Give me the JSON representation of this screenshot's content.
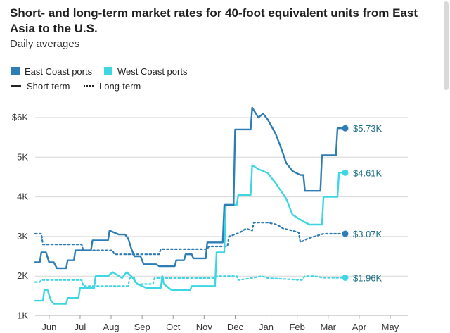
{
  "chart_data": {
    "type": "line",
    "title": "Short- and long-term market rates for 40-foot equivalent units from East Asia to the U.S.",
    "subtitle": "Daily averages",
    "legend": {
      "colors": [
        {
          "label": "East Coast ports",
          "color": "#2e7db5"
        },
        {
          "label": "West Coast ports",
          "color": "#3fd6e4"
        }
      ],
      "styles": [
        {
          "label": "Short-term",
          "style": "solid"
        },
        {
          "label": "Long-term",
          "style": "dotted"
        }
      ],
      "placement": "top-left"
    },
    "x_ticks": [
      "Jun",
      "Jul",
      "Aug",
      "Sep",
      "Oct",
      "Nov",
      "Dec",
      "Jan",
      "Feb",
      "Mar",
      "Apr",
      "May"
    ],
    "y_ticks": [
      "$6K",
      "5K",
      "4K",
      "3K",
      "2K",
      "1K"
    ],
    "y_tick_values": [
      6000,
      5000,
      4000,
      3000,
      2000,
      1000
    ],
    "ylim": [
      1000,
      6500
    ],
    "xlim": [
      0,
      12
    ],
    "grid": "horizontal",
    "series": [
      {
        "name": "East Coast ports",
        "style": "solid",
        "color": "#2e7db5",
        "end_label": "$5.73K",
        "points": [
          [
            0,
            2350
          ],
          [
            0.15,
            2350
          ],
          [
            0.2,
            2600
          ],
          [
            0.35,
            2600
          ],
          [
            0.45,
            2350
          ],
          [
            0.6,
            2350
          ],
          [
            0.7,
            2200
          ],
          [
            1.0,
            2200
          ],
          [
            1.05,
            2400
          ],
          [
            1.25,
            2400
          ],
          [
            1.3,
            2650
          ],
          [
            1.8,
            2650
          ],
          [
            1.85,
            2900
          ],
          [
            2.35,
            2900
          ],
          [
            2.4,
            3150
          ],
          [
            2.7,
            3050
          ],
          [
            2.9,
            3050
          ],
          [
            3.0,
            2950
          ],
          [
            3.1,
            2700
          ],
          [
            3.2,
            2500
          ],
          [
            3.4,
            2500
          ],
          [
            3.5,
            2300
          ],
          [
            3.9,
            2300
          ],
          [
            4.0,
            2250
          ],
          [
            4.5,
            2250
          ],
          [
            4.55,
            2400
          ],
          [
            4.8,
            2400
          ],
          [
            4.85,
            2550
          ],
          [
            5.05,
            2550
          ],
          [
            5.1,
            2450
          ],
          [
            5.5,
            2450
          ],
          [
            5.55,
            2850
          ],
          [
            6.05,
            2850
          ],
          [
            6.1,
            3800
          ],
          [
            6.4,
            3800
          ],
          [
            6.45,
            5700
          ],
          [
            6.95,
            5700
          ],
          [
            7.0,
            6250
          ],
          [
            7.2,
            6000
          ],
          [
            7.35,
            6100
          ],
          [
            7.5,
            5950
          ],
          [
            7.75,
            5600
          ],
          [
            7.9,
            5300
          ],
          [
            8.1,
            4850
          ],
          [
            8.3,
            4650
          ],
          [
            8.55,
            4550
          ],
          [
            8.65,
            4550
          ],
          [
            8.7,
            4150
          ],
          [
            9.2,
            4150
          ],
          [
            9.25,
            5050
          ],
          [
            9.7,
            5050
          ],
          [
            9.75,
            5730
          ],
          [
            10.0,
            5730
          ]
        ]
      },
      {
        "name": "West Coast ports",
        "style": "solid",
        "color": "#3fd6e4",
        "end_label": "$4.61K",
        "points": [
          [
            0,
            1380
          ],
          [
            0.25,
            1380
          ],
          [
            0.3,
            1650
          ],
          [
            0.4,
            1650
          ],
          [
            0.5,
            1400
          ],
          [
            0.6,
            1300
          ],
          [
            1.0,
            1300
          ],
          [
            1.05,
            1450
          ],
          [
            1.4,
            1450
          ],
          [
            1.45,
            1700
          ],
          [
            1.9,
            1700
          ],
          [
            1.95,
            2000
          ],
          [
            2.35,
            2000
          ],
          [
            2.5,
            2100
          ],
          [
            2.8,
            1950
          ],
          [
            2.95,
            2100
          ],
          [
            3.1,
            2000
          ],
          [
            3.3,
            1800
          ],
          [
            3.6,
            1700
          ],
          [
            4.05,
            1700
          ],
          [
            4.1,
            2000
          ],
          [
            4.15,
            1800
          ],
          [
            4.4,
            1650
          ],
          [
            5.0,
            1650
          ],
          [
            5.05,
            1750
          ],
          [
            5.8,
            1750
          ],
          [
            5.85,
            2600
          ],
          [
            6.1,
            2600
          ],
          [
            6.15,
            3800
          ],
          [
            6.5,
            3800
          ],
          [
            6.55,
            4050
          ],
          [
            6.95,
            4050
          ],
          [
            7.0,
            4800
          ],
          [
            7.2,
            4700
          ],
          [
            7.5,
            4600
          ],
          [
            7.75,
            4350
          ],
          [
            8.1,
            3950
          ],
          [
            8.3,
            3550
          ],
          [
            8.6,
            3400
          ],
          [
            8.85,
            3300
          ],
          [
            9.25,
            3300
          ],
          [
            9.3,
            4000
          ],
          [
            9.75,
            4000
          ],
          [
            9.8,
            4610
          ],
          [
            10.0,
            4610
          ]
        ]
      },
      {
        "name": "East Coast ports",
        "style": "dotted",
        "color": "#2e7db5",
        "end_label": "$3.07K",
        "points": [
          [
            0,
            3070
          ],
          [
            0.2,
            3070
          ],
          [
            0.25,
            2800
          ],
          [
            1.5,
            2800
          ],
          [
            1.55,
            2650
          ],
          [
            2.5,
            2650
          ],
          [
            2.55,
            2550
          ],
          [
            4.0,
            2550
          ],
          [
            4.05,
            2680
          ],
          [
            5.55,
            2680
          ],
          [
            5.6,
            2750
          ],
          [
            6.2,
            2750
          ],
          [
            6.25,
            3000
          ],
          [
            6.6,
            3100
          ],
          [
            6.8,
            3200
          ],
          [
            7.0,
            3150
          ],
          [
            7.05,
            3350
          ],
          [
            7.5,
            3350
          ],
          [
            7.8,
            3300
          ],
          [
            8.0,
            3200
          ],
          [
            8.3,
            3150
          ],
          [
            8.5,
            3100
          ],
          [
            8.55,
            2850
          ],
          [
            8.8,
            2950
          ],
          [
            9.3,
            3070
          ],
          [
            10.0,
            3070
          ]
        ]
      },
      {
        "name": "West Coast ports",
        "style": "dotted",
        "color": "#3fd6e4",
        "end_label": "$1.96K",
        "points": [
          [
            0,
            1850
          ],
          [
            0.15,
            1850
          ],
          [
            0.2,
            1900
          ],
          [
            1.5,
            1900
          ],
          [
            1.55,
            1750
          ],
          [
            3.0,
            1750
          ],
          [
            3.05,
            1950
          ],
          [
            3.2,
            1950
          ],
          [
            3.25,
            1800
          ],
          [
            3.8,
            1800
          ],
          [
            3.85,
            1950
          ],
          [
            5.8,
            1950
          ],
          [
            5.85,
            2000
          ],
          [
            6.5,
            2000
          ],
          [
            6.55,
            1900
          ],
          [
            7.0,
            1950
          ],
          [
            7.3,
            2000
          ],
          [
            7.5,
            1950
          ],
          [
            8.6,
            1900
          ],
          [
            8.7,
            2000
          ],
          [
            9.0,
            2000
          ],
          [
            9.3,
            1960
          ],
          [
            10.0,
            1960
          ]
        ]
      }
    ]
  }
}
